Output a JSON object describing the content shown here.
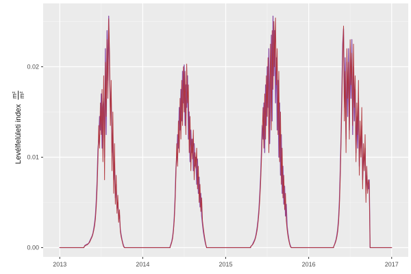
{
  "figure": {
    "background_color": "#FFFFFF",
    "panel_background_color": "#EBEBEB",
    "grid_major_color": "#FFFFFF",
    "grid_minor_color": "#FFFFFF",
    "grid_minor_opacity": 0.55,
    "axis_text_color": "#4D4D4D",
    "tick_mark_color": "#333333"
  },
  "chart_data": {
    "type": "line",
    "title": "",
    "xlabel": "",
    "ylabel": "Levélfelületi index",
    "ylabel_unit_numerator": "m²",
    "ylabel_unit_denominator": "m²",
    "legend": "none",
    "grid": "on",
    "x_domain": [
      2012.8,
      2017.2
    ],
    "y_domain": [
      -0.00102,
      0.027
    ],
    "x_ticks": [
      2013,
      2014,
      2015,
      2016,
      2017
    ],
    "x_tick_labels": [
      "2013",
      "2014",
      "2015",
      "2016",
      "2017"
    ],
    "x_minor_ticks": [
      2013.5,
      2014.5,
      2015.5,
      2016.5
    ],
    "y_ticks": [
      0,
      0.01,
      0.02
    ],
    "y_tick_labels": [
      "0.00",
      "0.01",
      "0.02"
    ],
    "y_minor_ticks": [
      0.005,
      0.015,
      0.025
    ],
    "y_value_scale_of_milli_values": 0.001,
    "series": [
      {
        "id": "purple-series",
        "color": "#8C4DA6",
        "stroke_width": 1.3,
        "opacity": 1,
        "parts": [
          {
            "x0": 2013.0,
            "dx": 0.29,
            "y_milli": [
              0,
              0
            ]
          },
          {
            "x0": 2013.3,
            "dx": 0.01,
            "y_milli": [
              0.2,
              0.3,
              0.3,
              0.4,
              0.4,
              0.5,
              0.7,
              0.9,
              1.1,
              1.3,
              1.6,
              2.1,
              2.7,
              3.6,
              5.2,
              7.4,
              10.8,
              12.0,
              14.5,
              13.0,
              17.0,
              11.0,
              15.5,
              16.5,
              10.0,
              22.0,
              12.5,
              24.0,
              18.5,
              25.6,
              19.5,
              15.5,
              16.5,
              10.5,
              13.0,
              7.5,
              9.5,
              5.5,
              7.0,
              4.3,
              5.0,
              3.2,
              3.6,
              2.0,
              1.4,
              0.9,
              0.5,
              0.2,
              0
            ]
          },
          {
            "x0": 2013.78,
            "dx": 0.55,
            "y_milli": [
              0,
              0
            ]
          },
          {
            "x0": 2014.33,
            "dx": 0.01,
            "y_milli": [
              0.1,
              0.4,
              0.7,
              1.2,
              2.0,
              3.4,
              5.6,
              8.8,
              10.0,
              12.5,
              11.0,
              15.5,
              13.0,
              17.5,
              14.0,
              19.5,
              16.0,
              20.2,
              13.5,
              18.0,
              15.5,
              19.0,
              12.0,
              15.0,
              9.5,
              13.0,
              10.5,
              12.0,
              8.5,
              11.5,
              9.0,
              10.0,
              7.0,
              9.8,
              6.0,
              7.8,
              4.5,
              6.0,
              3.5,
              2.6,
              1.8,
              1.2,
              0.7,
              0.3,
              0
            ]
          },
          {
            "x0": 2014.77,
            "dx": 0.53,
            "y_milli": [
              0,
              0
            ]
          },
          {
            "x0": 2015.3,
            "dx": 0.01,
            "y_milli": [
              0.1,
              0.2,
              0.3,
              0.5,
              0.7,
              0.9,
              1.2,
              1.7,
              2.3,
              3.1,
              4.2,
              5.8,
              7.8,
              10.5,
              13.5,
              12.0,
              16.0,
              10.5,
              18.0,
              13.5,
              20.0,
              15.5,
              22.0,
              11.5,
              17.5,
              23.5,
              14.0,
              25.6,
              19.0,
              24.0,
              16.0,
              21.0,
              13.0,
              18.5,
              10.0,
              16.0,
              8.0,
              12.5,
              6.0,
              9.0,
              4.8,
              6.8,
              3.5,
              4.8,
              2.4,
              1.6,
              1.0,
              0.5,
              0.2,
              0
            ]
          },
          {
            "x0": 2015.79,
            "dx": 0.51,
            "y_milli": [
              0,
              0
            ]
          },
          {
            "x0": 2016.3,
            "dx": 0.01,
            "y_milli": [
              0.1,
              0.3,
              0.6,
              0.9,
              1.4,
              2.1,
              3.2,
              5.2,
              8.5,
              12.5,
              17.5,
              22.5,
              24.2,
              15.5,
              21.0,
              12.0,
              20.5,
              14.5,
              22.0,
              13.0,
              21.5,
              16.5,
              23.0,
              12.5,
              20.0,
              14.0,
              17.5,
              10.5,
              14.5,
              11.0,
              16.5,
              9.0,
              12.5,
              11.0,
              13.5,
              7.5,
              10.0,
              9.5,
              11.0,
              6.0,
              8.0,
              6.8,
              6.5,
              7.5,
              0
            ]
          },
          {
            "x0": 2016.74,
            "dx": 0.26,
            "y_milli": [
              0,
              0
            ]
          }
        ]
      },
      {
        "id": "red-series",
        "color": "#B03238",
        "stroke_width": 1.0,
        "opacity": 0.95,
        "parts": [
          {
            "x0": 2013.0,
            "dx": 0.29,
            "y_milli": [
              0,
              0
            ]
          },
          {
            "x0": 2013.3,
            "dx": 0.01,
            "y_milli": [
              0.2,
              0.2,
              0.3,
              0.3,
              0.4,
              0.5,
              0.6,
              0.8,
              1.0,
              1.2,
              1.5,
              1.9,
              2.4,
              3.2,
              4.5,
              6.5,
              9.5,
              13.5,
              11.0,
              16.0,
              12.5,
              17.5,
              9.5,
              19.0,
              7.5,
              20.5,
              14.5,
              23.0,
              16.5,
              25.3,
              21.5,
              13.5,
              18.5,
              8.5,
              15.0,
              6.0,
              11.5,
              4.8,
              8.0,
              3.8,
              5.8,
              2.8,
              4.2,
              1.8,
              1.2,
              0.8,
              0.4,
              0.1,
              0
            ]
          },
          {
            "x0": 2013.78,
            "dx": 0.55,
            "y_milli": [
              0,
              0
            ]
          },
          {
            "x0": 2014.33,
            "dx": 0.01,
            "y_milli": [
              0.1,
              0.3,
              0.6,
              1.0,
              1.8,
              3.0,
              5.0,
              8.0,
              11.5,
              9.0,
              14.0,
              10.5,
              16.5,
              12.0,
              18.5,
              13.5,
              20.0,
              15.0,
              19.5,
              12.5,
              20.3,
              16.0,
              18.0,
              10.5,
              14.5,
              8.5,
              12.0,
              9.8,
              13.0,
              7.5,
              10.5,
              8.8,
              11.0,
              6.5,
              9.0,
              5.0,
              7.0,
              4.0,
              5.5,
              3.0,
              2.2,
              1.5,
              0.9,
              0.4,
              0
            ]
          },
          {
            "x0": 2014.77,
            "dx": 0.53,
            "y_milli": [
              0,
              0
            ]
          },
          {
            "x0": 2015.3,
            "dx": 0.01,
            "y_milli": [
              0.1,
              0.2,
              0.3,
              0.4,
              0.6,
              0.8,
              1.1,
              1.5,
              2.0,
              2.8,
              3.8,
              5.2,
              7.0,
              9.5,
              12.5,
              15.5,
              11.0,
              17.0,
              12.0,
              19.0,
              14.5,
              21.0,
              10.5,
              16.5,
              22.5,
              13.0,
              24.0,
              17.5,
              25.0,
              20.0,
              25.4,
              18.0,
              22.0,
              12.5,
              19.5,
              9.5,
              15.0,
              7.0,
              11.0,
              5.5,
              8.0,
              4.2,
              6.0,
              3.0,
              2.0,
              1.3,
              0.8,
              0.4,
              0.1,
              0
            ]
          },
          {
            "x0": 2015.79,
            "dx": 0.51,
            "y_milli": [
              0,
              0
            ]
          },
          {
            "x0": 2016.3,
            "dx": 0.01,
            "y_milli": [
              0.1,
              0.3,
              0.5,
              0.8,
              1.2,
              1.8,
              2.8,
              4.5,
              7.5,
              11.5,
              16.0,
              21.0,
              24.5,
              14.0,
              19.5,
              10.5,
              22.0,
              16.5,
              20.5,
              12.0,
              23.0,
              18.0,
              21.5,
              13.5,
              22.5,
              15.5,
              19.0,
              9.5,
              16.0,
              12.5,
              18.5,
              8.0,
              14.0,
              10.0,
              15.5,
              6.5,
              11.5,
              8.5,
              12.5,
              5.0,
              9.0,
              6.0,
              7.5,
              7.0,
              0
            ]
          },
          {
            "x0": 2016.74,
            "dx": 0.26,
            "y_milli": [
              0,
              0
            ]
          }
        ]
      }
    ]
  }
}
